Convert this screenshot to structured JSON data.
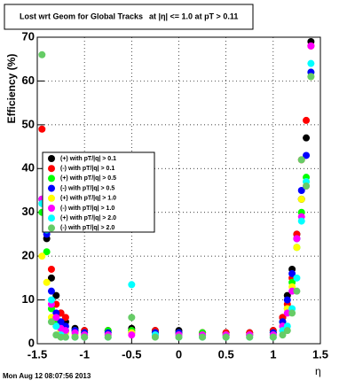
{
  "chart_data": {
    "type": "scatter",
    "title": "Lost wrt Geom for Global Tracks",
    "subtitle": "at |η| <= 1.0 at pT > 0.11",
    "x_label": "η",
    "y_label": "Efficiency (%)",
    "footer": "Mon Aug 12 08:07:56 2013",
    "xlim": [
      -1.5,
      1.5
    ],
    "ylim": [
      0,
      70
    ],
    "xticks": [
      -1.5,
      -1,
      -0.5,
      0,
      0.5,
      1,
      1.5
    ],
    "yticks": [
      0,
      10,
      20,
      30,
      40,
      50,
      60,
      70
    ],
    "grid": true,
    "x": [
      -1.45,
      -1.4,
      -1.35,
      -1.3,
      -1.25,
      -1.2,
      -1.1,
      -1,
      -0.75,
      -0.5,
      -0.25,
      0,
      0.25,
      0.5,
      0.75,
      1,
      1.1,
      1.15,
      1.2,
      1.25,
      1.3,
      1.35,
      1.4
    ],
    "series": [
      {
        "name": "(+) with pT/|q| > 0.1",
        "color": "#000000",
        "values": [
          33,
          24,
          15,
          11,
          7,
          5,
          3.5,
          3,
          3,
          3.5,
          3,
          3,
          2.5,
          2.5,
          2.5,
          3,
          6,
          11,
          17,
          25,
          33,
          47,
          69
        ]
      },
      {
        "name": "(-) with pT/|q| > 0.1",
        "color": "#ff0000",
        "values": [
          49,
          26,
          17,
          9,
          7,
          6,
          3,
          3,
          3,
          3,
          3,
          2.5,
          2.5,
          2.5,
          2.5,
          3,
          6,
          9,
          15,
          25,
          42,
          51,
          68
        ]
      },
      {
        "name": "(+) with pT/|q| > 0.5",
        "color": "#00ff00",
        "values": [
          30,
          21,
          8,
          5,
          4,
          3,
          3,
          2.5,
          3,
          3,
          2.5,
          2.5,
          2.5,
          2,
          2,
          2.5,
          5,
          8,
          14,
          22,
          30,
          38,
          62
        ]
      },
      {
        "name": "(-) with pT/|q| > 0.5",
        "color": "#0000ff",
        "values": [
          33,
          25,
          12,
          7,
          5,
          4,
          3,
          2.5,
          2.5,
          2.5,
          2.5,
          2.5,
          2,
          2,
          2,
          2.5,
          5,
          10,
          16,
          24,
          35,
          43,
          62
        ]
      },
      {
        "name": "(+) with pT/|q| > 1.0",
        "color": "#ffff00",
        "values": [
          20,
          14,
          6,
          4,
          3,
          2.5,
          2,
          2,
          2,
          2.5,
          2,
          2,
          2,
          2,
          2,
          2,
          4,
          8,
          13,
          22,
          33,
          37,
          61
        ]
      },
      {
        "name": "(-) with pT/|q| > 1.0",
        "color": "#ff00ff",
        "values": [
          33,
          29,
          9,
          6,
          3.5,
          3,
          2.5,
          2,
          2,
          2,
          2,
          2,
          2,
          2,
          2,
          2,
          4,
          7,
          12,
          24,
          29,
          36,
          68
        ]
      },
      {
        "name": "(+) with pT/|q| > 2.0",
        "color": "#00ffff",
        "values": [
          32,
          26,
          10,
          4,
          2,
          1.5,
          1.5,
          1.5,
          1.5,
          13.5,
          2,
          1.5,
          1.5,
          1.5,
          1.5,
          1.5,
          3,
          4,
          8,
          15,
          28,
          37,
          64
        ]
      },
      {
        "name": "(-) with pT/|q| > 2.0",
        "color": "#66cc66",
        "values": [
          66,
          34,
          5,
          2,
          1.5,
          1.5,
          1.5,
          1.5,
          1.5,
          6,
          1.5,
          1.5,
          1.5,
          1.5,
          1.5,
          1.5,
          2,
          3,
          7,
          12,
          42,
          36,
          61
        ]
      }
    ]
  }
}
